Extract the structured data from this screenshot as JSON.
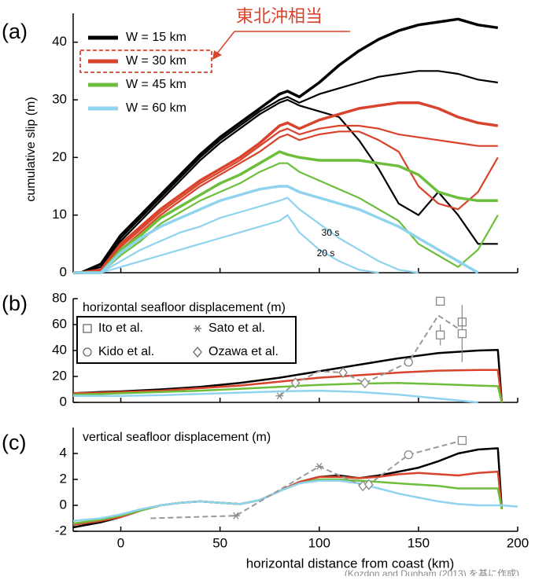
{
  "panel_labels": [
    "(a)",
    "(b)",
    "(c)"
  ],
  "source": "(Kozdon and Dunham (2013) を基に作成)",
  "callout": "東北沖相当",
  "chart_data": [
    {
      "type": "line",
      "y_label": "cumulative slip (m)",
      "xlim": [
        -24,
        200
      ],
      "xticks": [
        0,
        50,
        100,
        150,
        200
      ],
      "ylim": [
        0,
        45
      ],
      "yticks": [
        0,
        10,
        20,
        30,
        40
      ],
      "x": [
        -24,
        -20,
        -10,
        0,
        10,
        20,
        30,
        40,
        50,
        60,
        70,
        80,
        84,
        90,
        100,
        110,
        120,
        130,
        140,
        150,
        160,
        170,
        180,
        190
      ],
      "annotations": [
        "30 s",
        "20 s"
      ],
      "series": [
        {
          "name": "W = 15 km",
          "color": "#000000",
          "curves": [
            [
              0,
              0,
              1.5,
              6.5,
              10,
              13.5,
              17,
              20.5,
              23.5,
              26,
              28.5,
              31,
              31.5,
              30.5,
              33,
              36,
              38.5,
              40.5,
              42,
              43,
              43.5,
              44,
              43,
              42.5
            ],
            [
              0,
              0,
              1,
              6,
              9.5,
              13,
              16.5,
              20,
              23,
              25.5,
              28,
              30,
              30.5,
              29.5,
              31,
              32,
              33,
              34,
              34.5,
              35,
              35,
              34.5,
              33.5,
              33
            ],
            [
              0,
              0,
              1,
              5.5,
              9,
              12.5,
              16,
              19.5,
              22.5,
              25,
              27.5,
              29.5,
              30,
              29,
              28,
              27,
              23,
              18,
              12,
              10,
              14,
              10,
              5,
              5
            ]
          ]
        },
        {
          "name": "W = 30 km",
          "color": "#d9432b",
          "curves": [
            [
              0,
              0,
              0.5,
              5,
              8,
              11,
              13.5,
              16,
              18,
              20,
              22.5,
              25.5,
              26,
              25,
              26.5,
              27.5,
              28.5,
              29,
              29.5,
              29.5,
              28.5,
              27,
              26,
              25.5
            ],
            [
              0,
              0,
              0.3,
              4.5,
              7.5,
              10.5,
              13,
              15.5,
              17.5,
              19.5,
              22,
              24.5,
              25,
              24,
              25,
              25.5,
              25.5,
              25,
              24,
              23.5,
              23,
              22.5,
              22,
              22
            ],
            [
              0,
              0,
              0.2,
              4,
              7,
              10,
              12.5,
              15,
              17,
              19,
              21,
              23.5,
              24,
              23,
              24,
              24.5,
              24.5,
              23,
              21,
              15,
              12,
              11,
              14,
              20
            ]
          ]
        },
        {
          "name": "W = 45 km",
          "color": "#6dbf3b",
          "curves": [
            [
              0,
              0,
              0,
              4,
              6.5,
              9.5,
              11.5,
              13.5,
              15.5,
              17,
              19,
              21,
              20.5,
              20,
              19.5,
              19.5,
              19.5,
              19,
              18.5,
              17,
              14,
              13,
              12.5,
              12.5
            ],
            [
              0,
              0,
              0,
              3,
              5.5,
              8.5,
              10.5,
              12.5,
              14,
              15.5,
              17.5,
              19,
              19,
              17.5,
              16,
              14.5,
              13,
              11,
              9,
              5,
              3,
              1,
              4,
              10
            ]
          ]
        },
        {
          "name": "W = 60 km",
          "color": "#8fd3ee",
          "curves": [
            [
              0,
              0,
              0,
              3.5,
              6,
              8,
              9.5,
              11,
              12.5,
              13.5,
              14.5,
              15,
              15,
              14,
              13,
              12,
              11,
              9.5,
              8,
              6,
              4,
              2,
              0,
              null
            ],
            [
              0,
              0,
              0,
              2,
              4,
              5.5,
              7,
              8,
              9.5,
              10.5,
              11.5,
              12.5,
              13,
              11,
              8.5,
              6,
              4,
              2,
              0.5,
              0,
              null,
              null,
              null,
              null
            ],
            [
              0,
              0,
              0,
              1,
              2,
              3,
              4,
              5,
              6,
              7,
              8,
              9,
              10,
              7,
              4,
              2,
              0.5,
              0,
              null,
              null,
              null,
              null,
              null,
              null
            ]
          ]
        }
      ]
    },
    {
      "type": "line",
      "title": "horizontal seafloor displacement (m)",
      "xlim": [
        -24,
        200
      ],
      "xticks": [
        0,
        50,
        100,
        150,
        200
      ],
      "ylim": [
        0,
        80
      ],
      "yticks": [
        0,
        20,
        40,
        60,
        80
      ],
      "x": [
        -24,
        -10,
        0,
        20,
        40,
        60,
        80,
        100,
        120,
        140,
        160,
        180,
        190,
        192
      ],
      "series": [
        {
          "color": "#000000",
          "values": [
            7,
            8,
            8.5,
            10,
            12,
            15,
            19,
            24,
            29,
            34,
            38,
            40,
            40.5,
            0
          ]
        },
        {
          "color": "#d9432b",
          "values": [
            7,
            7.5,
            8,
            9,
            11,
            13,
            16,
            19,
            21,
            23,
            24.5,
            25,
            25,
            0
          ]
        },
        {
          "color": "#6dbf3b",
          "values": [
            6,
            6.5,
            7,
            8,
            9,
            10.5,
            12,
            13.5,
            14.5,
            15,
            14,
            13,
            12.5,
            0
          ]
        },
        {
          "color": "#8fd3ee",
          "values": [
            5,
            5,
            5,
            5.5,
            6.5,
            7.5,
            8.5,
            9,
            8,
            6,
            3,
            0,
            null,
            null
          ]
        }
      ],
      "observation_line": {
        "color": "#999999",
        "x": [
          80,
          88,
          100,
          112,
          123,
          145,
          160,
          172
        ],
        "values": [
          5,
          15,
          24,
          23,
          15,
          31,
          67,
          55
        ]
      },
      "observations": [
        {
          "name": "Ito et al.",
          "marker": "square",
          "x": [
            161,
            161,
            172,
            172
          ],
          "values": [
            78,
            52,
            62,
            53
          ],
          "errors": [
            null,
            8,
            null,
            22
          ]
        },
        {
          "name": "Sato et al.",
          "marker": "asterisk",
          "x": [
            80
          ],
          "values": [
            5
          ],
          "errors": [
            null
          ]
        },
        {
          "name": "Kido et al.",
          "marker": "circle",
          "x": [
            145
          ],
          "values": [
            31
          ],
          "errors": [
            null
          ]
        },
        {
          "name": "Ozawa et al.",
          "marker": "diamond",
          "x": [
            88,
            112,
            123
          ],
          "values": [
            15,
            23,
            15
          ],
          "errors": [
            null,
            null,
            null
          ]
        }
      ]
    },
    {
      "type": "line",
      "title": "vertical seafloor displacement (m)",
      "x_label": "horizontal distance from coast (km)",
      "xlim": [
        -24,
        200
      ],
      "xticks": [
        0,
        50,
        100,
        150,
        200
      ],
      "ylim": [
        -2,
        6
      ],
      "yticks": [
        -2,
        0,
        2,
        4
      ],
      "x": [
        -24,
        -10,
        0,
        10,
        20,
        30,
        40,
        50,
        60,
        70,
        80,
        90,
        100,
        110,
        120,
        130,
        140,
        150,
        160,
        170,
        180,
        190,
        192,
        200
      ],
      "series": [
        {
          "color": "#000000",
          "values": [
            -1.7,
            -1.3,
            -0.9,
            -0.4,
            0,
            0.2,
            0.3,
            0.2,
            0.1,
            0.4,
            1.1,
            1.8,
            2.2,
            2.3,
            2.1,
            2.3,
            2.6,
            2.9,
            3.4,
            4.0,
            4.3,
            4.4,
            -0.3,
            null
          ]
        },
        {
          "color": "#d9432b",
          "values": [
            -1.5,
            -1.2,
            -0.9,
            -0.4,
            0,
            0.2,
            0.3,
            0.2,
            0.1,
            0.4,
            1.1,
            1.8,
            2.2,
            2.2,
            2.1,
            2.2,
            2.4,
            2.5,
            2.4,
            2.3,
            2.5,
            2.6,
            -0.3,
            null
          ]
        },
        {
          "color": "#6dbf3b",
          "values": [
            -1.4,
            -1.1,
            -0.8,
            -0.4,
            0,
            0.2,
            0.3,
            0.2,
            0.1,
            0.4,
            1.1,
            1.7,
            2.0,
            2.0,
            1.9,
            1.8,
            1.7,
            1.6,
            1.5,
            1.3,
            1.3,
            1.3,
            -0.3,
            null
          ]
        },
        {
          "color": "#8fd3ee",
          "values": [
            -1.2,
            -1.0,
            -0.7,
            -0.3,
            0,
            0.2,
            0.3,
            0.2,
            0.1,
            0.4,
            1.1,
            1.7,
            1.9,
            1.9,
            1.7,
            1.3,
            0.9,
            0.6,
            0.3,
            0.1,
            0,
            0,
            0,
            -0.1
          ]
        }
      ],
      "observation_line": {
        "color": "#999999",
        "x": [
          15,
          58,
          100,
          122,
          125,
          145,
          172
        ],
        "values": [
          -1,
          -0.8,
          3,
          1.5,
          1.6,
          3.9,
          5
        ]
      },
      "observations": [
        {
          "marker": "square",
          "x": [
            172
          ],
          "values": [
            5
          ],
          "errors": [
            0.3
          ]
        },
        {
          "marker": "asterisk",
          "x": [
            58,
            100
          ],
          "values": [
            -0.8,
            3
          ],
          "errors": [
            null,
            null
          ]
        },
        {
          "marker": "circle",
          "x": [
            145
          ],
          "values": [
            3.9
          ],
          "errors": [
            null
          ]
        },
        {
          "marker": "diamond",
          "x": [
            122,
            125
          ],
          "values": [
            1.5,
            1.6
          ],
          "errors": [
            0.3,
            0.3
          ]
        }
      ]
    }
  ]
}
